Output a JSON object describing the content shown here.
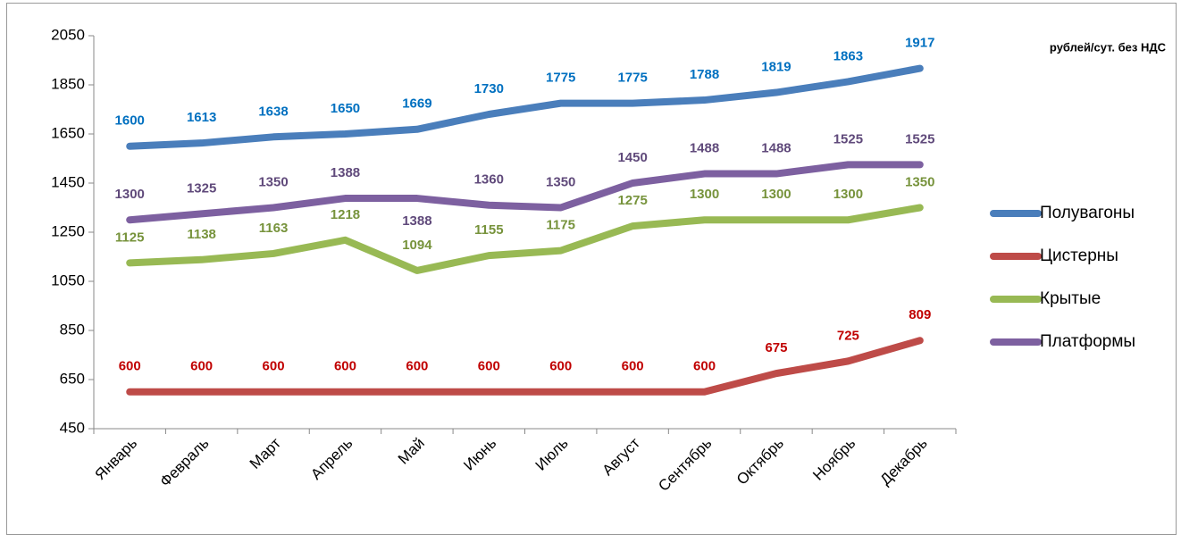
{
  "chart_data": {
    "type": "line",
    "unit_label": "рублей/сут. без НДС",
    "categories": [
      "Январь",
      "Февраль",
      "Март",
      "Апрель",
      "Май",
      "Июнь",
      "Июль",
      "Август",
      "Сентябрь",
      "Октябрь",
      "Ноябрь",
      "Декабрь"
    ],
    "series": [
      {
        "name": "Полувагоны",
        "color": "#4a7ebb",
        "label_color": "#0070c0",
        "values": [
          1600,
          1613,
          1638,
          1650,
          1669,
          1730,
          1775,
          1775,
          1788,
          1819,
          1863,
          1917
        ]
      },
      {
        "name": "Цистерны",
        "color": "#be4b48",
        "label_color": "#c00000",
        "values": [
          600,
          600,
          600,
          600,
          600,
          600,
          600,
          600,
          600,
          675,
          725,
          809
        ]
      },
      {
        "name": "Крытые",
        "color": "#98b954",
        "label_color": "#77933c",
        "values": [
          1125,
          1138,
          1163,
          1218,
          1094,
          1155,
          1175,
          1275,
          1300,
          1300,
          1300,
          1350
        ]
      },
      {
        "name": "Платформы",
        "color": "#7d60a0",
        "label_color": "#604a7b",
        "values": [
          1300,
          1325,
          1350,
          1388,
          1388,
          1360,
          1350,
          1450,
          1488,
          1488,
          1525,
          1525
        ]
      }
    ],
    "ylim": [
      450,
      2050
    ],
    "yticks": [
      450,
      650,
      850,
      1050,
      1250,
      1450,
      1650,
      1850,
      2050
    ],
    "legend": "right"
  }
}
